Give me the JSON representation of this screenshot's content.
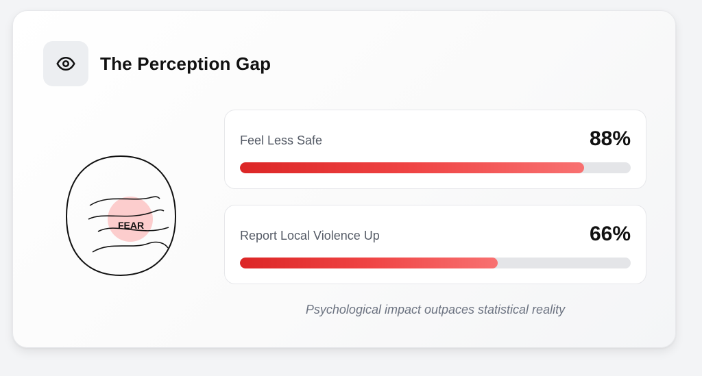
{
  "card": {
    "header": {
      "icon": "eye-icon",
      "title": "The Perception Gap"
    },
    "illustration": {
      "icon": "head-with-fear-icon",
      "label": "FEAR"
    },
    "stats": [
      {
        "label": "Feel Less Safe",
        "value": "88%",
        "percent": 88
      },
      {
        "label": "Report Local Violence Up",
        "value": "66%",
        "percent": 66
      }
    ],
    "caption": "Psychological impact outpaces statistical reality"
  },
  "colors": {
    "bar_start": "#dc2626",
    "bar_end": "#f87171",
    "fear_spot": "#fbc4c4"
  }
}
